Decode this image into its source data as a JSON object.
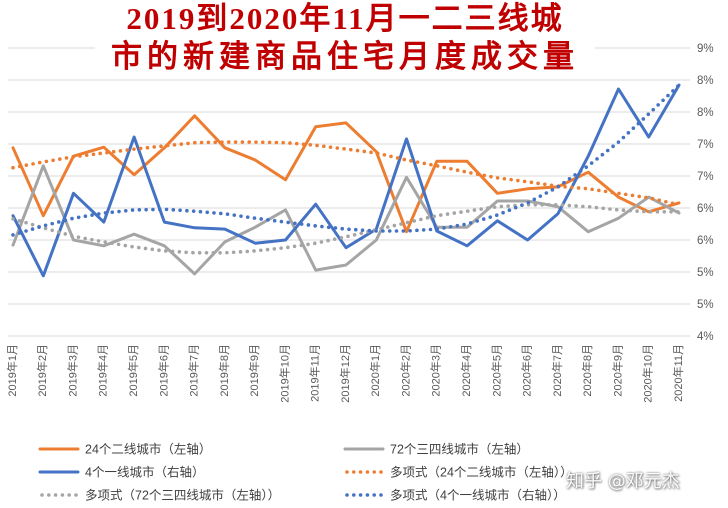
{
  "chart_data": {
    "type": "line",
    "title_lines": [
      "2019到2020年11月一二三线城",
      "市的新建商品住宅月度成交量"
    ],
    "categories": [
      "2019年1月",
      "2019年2月",
      "2019年3月",
      "2019年4月",
      "2019年5月",
      "2019年6月",
      "2019年7月",
      "2019年8月",
      "2019年9月",
      "2019年10月",
      "2019年11月",
      "2019年12月",
      "2020年1月",
      "2020年2月",
      "2020年3月",
      "2020年4月",
      "2020年5月",
      "2020年6月",
      "2020年7月",
      "2020年8月",
      "2020年9月",
      "2020年10月",
      "2020年11月"
    ],
    "y_right": {
      "range": [
        4.0,
        8.5
      ],
      "ticks": [
        8.5,
        8.0,
        7.5,
        7.0,
        6.5,
        6.0,
        5.5,
        5.0,
        4.5,
        4.0
      ],
      "tick_labels": [
        "9%",
        "8%",
        "8%",
        "7%",
        "7%",
        "6%",
        "6%",
        "5%",
        "5%",
        "4%"
      ]
    },
    "y_left": {
      "range": [
        4.0,
        8.5
      ],
      "tick_labels_shown": false
    },
    "grid": true,
    "legend_position": "bottom",
    "series": [
      {
        "name": "24个二线城市（左轴）",
        "axis": "left",
        "style": "solid",
        "color": "#ED7D31",
        "values": [
          6.94,
          5.88,
          6.81,
          6.95,
          6.52,
          6.94,
          7.44,
          6.94,
          6.75,
          6.44,
          7.27,
          7.33,
          6.88,
          5.63,
          6.73,
          6.73,
          6.23,
          6.3,
          6.33,
          6.56,
          6.17,
          5.94,
          6.08
        ]
      },
      {
        "name": "72个三四线城市（左轴）",
        "axis": "left",
        "style": "solid",
        "color": "#A5A5A5",
        "values": [
          5.42,
          6.66,
          5.5,
          5.41,
          5.59,
          5.41,
          4.97,
          5.47,
          5.7,
          5.97,
          5.03,
          5.11,
          5.5,
          6.48,
          5.7,
          5.7,
          6.11,
          6.11,
          6.02,
          5.63,
          5.84,
          6.17,
          5.92
        ]
      },
      {
        "name": "4个一线城市（右轴）",
        "axis": "right",
        "style": "solid",
        "color": "#4472C4",
        "values": [
          5.88,
          4.94,
          6.23,
          5.78,
          7.11,
          5.78,
          5.69,
          5.67,
          5.45,
          5.5,
          6.06,
          5.38,
          5.67,
          7.08,
          5.64,
          5.41,
          5.8,
          5.5,
          5.91,
          6.81,
          7.86,
          7.11,
          7.92
        ]
      },
      {
        "name": "多项式（24个二线城市（左轴））",
        "axis": "left",
        "style": "dotted",
        "color": "#ED7D31",
        "values": [
          6.63,
          6.72,
          6.8,
          6.86,
          6.92,
          6.97,
          7.02,
          7.03,
          7.03,
          7.02,
          6.98,
          6.92,
          6.86,
          6.75,
          6.66,
          6.56,
          6.47,
          6.41,
          6.34,
          6.3,
          6.23,
          6.16,
          6.05
        ]
      },
      {
        "name": "多项式（72个三四线城市（左轴））",
        "axis": "left",
        "style": "dotted",
        "color": "#A5A5A5",
        "values": [
          5.83,
          5.69,
          5.56,
          5.47,
          5.39,
          5.33,
          5.3,
          5.3,
          5.33,
          5.38,
          5.45,
          5.55,
          5.66,
          5.77,
          5.88,
          5.95,
          6.02,
          6.05,
          6.05,
          6.02,
          5.97,
          5.94,
          5.94
        ]
      },
      {
        "name": "多项式（4个一线城市（右轴））",
        "axis": "right",
        "style": "dotted",
        "color": "#4472C4",
        "values": [
          5.58,
          5.72,
          5.84,
          5.92,
          5.97,
          5.98,
          5.95,
          5.91,
          5.84,
          5.78,
          5.72,
          5.67,
          5.64,
          5.64,
          5.67,
          5.75,
          5.89,
          6.08,
          6.33,
          6.66,
          7.03,
          7.47,
          7.92
        ]
      }
    ]
  },
  "watermark": "知乎 @邓元杰",
  "colors": {
    "title": "#C00000",
    "gridline": "#D9D9D9",
    "tick_label": "#595959",
    "legend_text": "#404040"
  }
}
